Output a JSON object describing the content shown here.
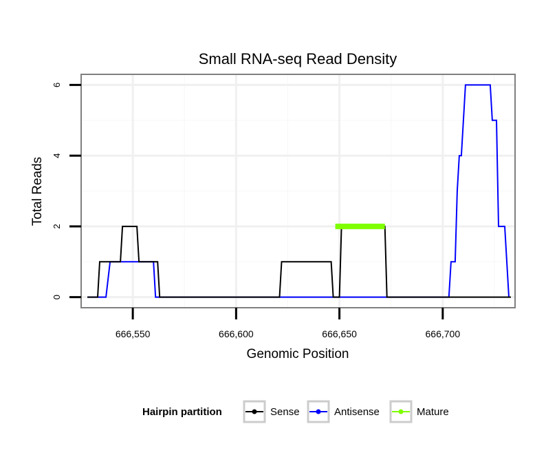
{
  "chart_data": {
    "type": "line",
    "title": "Small RNA-seq Read Density",
    "xlabel": "Genomic Position",
    "ylabel": "Total Reads",
    "xlim": [
      666525,
      666735
    ],
    "ylim": [
      -0.3,
      6.3
    ],
    "x_ticks": [
      666550,
      666600,
      666650,
      666700
    ],
    "x_tick_labels": [
      "666,550",
      "666,600",
      "666,650",
      "666,700"
    ],
    "y_ticks": [
      0,
      2,
      4,
      6
    ],
    "y_tick_labels": [
      "0",
      "2",
      "4",
      "6"
    ],
    "grid": true,
    "legend": {
      "title": "Hairpin partition",
      "position": "bottom"
    },
    "series": [
      {
        "name": "Sense",
        "color": "#000000",
        "x": [
          666528,
          666533,
          666534,
          666544,
          666545,
          666552,
          666553,
          666562,
          666563,
          666621,
          666622,
          666646,
          666647,
          666650,
          666651,
          666672,
          666673,
          666733
        ],
        "y": [
          0,
          0,
          1,
          1,
          2,
          2,
          1,
          1,
          0,
          0,
          1,
          1,
          0,
          0,
          2,
          2,
          0,
          0
        ]
      },
      {
        "name": "Antisense",
        "color": "#0000ff",
        "x": [
          666528,
          666537,
          666539,
          666560,
          666561,
          666703,
          666704,
          666706,
          666707,
          666708,
          666709,
          666711,
          666713,
          666723,
          666724,
          666726,
          666727,
          666730,
          666731,
          666732
        ],
        "y": [
          0,
          0,
          1,
          1,
          0,
          0,
          1,
          1,
          3,
          4,
          4,
          6,
          6,
          6,
          5,
          5,
          2,
          2,
          1,
          0
        ]
      },
      {
        "name": "Mature",
        "color": "#7fff00",
        "x": [
          666648,
          666672
        ],
        "y": [
          2,
          2
        ]
      }
    ]
  }
}
